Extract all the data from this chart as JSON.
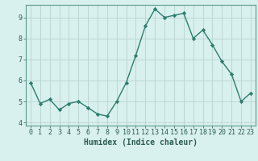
{
  "x": [
    0,
    1,
    2,
    3,
    4,
    5,
    6,
    7,
    8,
    9,
    10,
    11,
    12,
    13,
    14,
    15,
    16,
    17,
    18,
    19,
    20,
    21,
    22,
    23
  ],
  "y": [
    5.9,
    4.9,
    5.1,
    4.6,
    4.9,
    5.0,
    4.7,
    4.4,
    4.3,
    5.0,
    5.9,
    7.2,
    8.6,
    9.4,
    9.0,
    9.1,
    9.2,
    8.0,
    8.4,
    7.7,
    6.9,
    6.3,
    5.0,
    5.4
  ],
  "line_color": "#2d7d6e",
  "marker": "D",
  "markersize": 2.2,
  "linewidth": 1.0,
  "bg_color": "#d8f0ee",
  "grid_color": "#b8d4d0",
  "xlabel": "Humidex (Indice chaleur)",
  "xlim": [
    -0.5,
    23.5
  ],
  "ylim": [
    3.85,
    9.6
  ],
  "yticks": [
    4,
    5,
    6,
    7,
    8,
    9
  ],
  "xticks": [
    0,
    1,
    2,
    3,
    4,
    5,
    6,
    7,
    8,
    9,
    10,
    11,
    12,
    13,
    14,
    15,
    16,
    17,
    18,
    19,
    20,
    21,
    22,
    23
  ],
  "tick_color": "#2d5c50",
  "xlabel_fontsize": 7,
  "tick_fontsize": 6,
  "axis_color": "#5a9a8a"
}
